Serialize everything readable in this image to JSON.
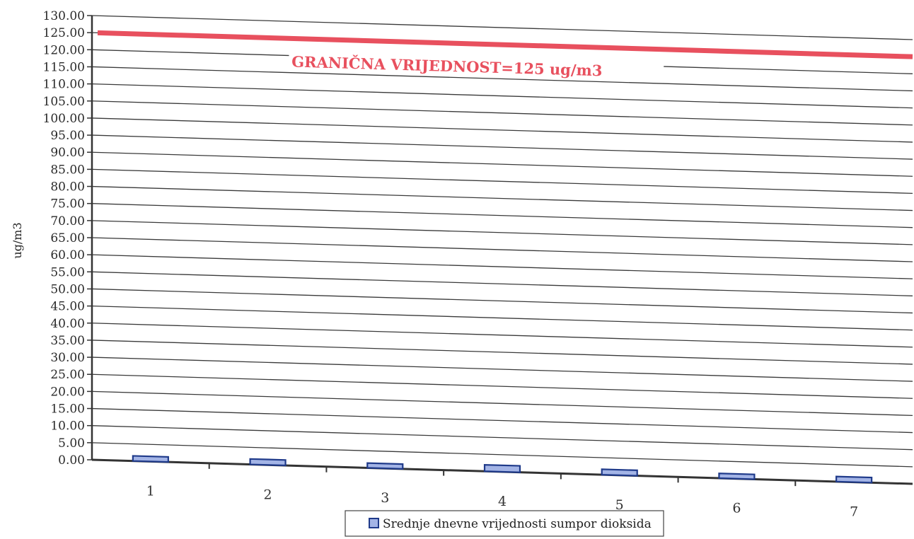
{
  "chart_data": {
    "type": "bar",
    "categories": [
      "1",
      "2",
      "3",
      "4",
      "5",
      "6",
      "7"
    ],
    "series": [
      {
        "name": "Srednje dnevne vrijednosti sumpor dioksida",
        "values": [
          1.5,
          1.6,
          1.4,
          1.9,
          1.6,
          1.4,
          1.5
        ],
        "color": "#a3b4e6",
        "edge_color": "#1f3a8a"
      }
    ],
    "ylabel": "ug/m3",
    "xlabel": "",
    "ylim": [
      0,
      130
    ],
    "y_tick_step": 5,
    "y_tick_labels": [
      "0.00",
      "5.00",
      "10.00",
      "15.00",
      "20.00",
      "25.00",
      "30.00",
      "35.00",
      "40.00",
      "45.00",
      "50.00",
      "55.00",
      "60.00",
      "65.00",
      "70.00",
      "75.00",
      "80.00",
      "85.00",
      "90.00",
      "95.00",
      "100.00",
      "105.00",
      "110.00",
      "115.00",
      "120.00",
      "125.00",
      "130.00"
    ],
    "grid": true,
    "limit_line": {
      "value": 125,
      "label": "GRANIČNA VRIJEDNOST=125 ug/m3",
      "color": "#e8505e"
    },
    "legend_position": "bottom"
  }
}
